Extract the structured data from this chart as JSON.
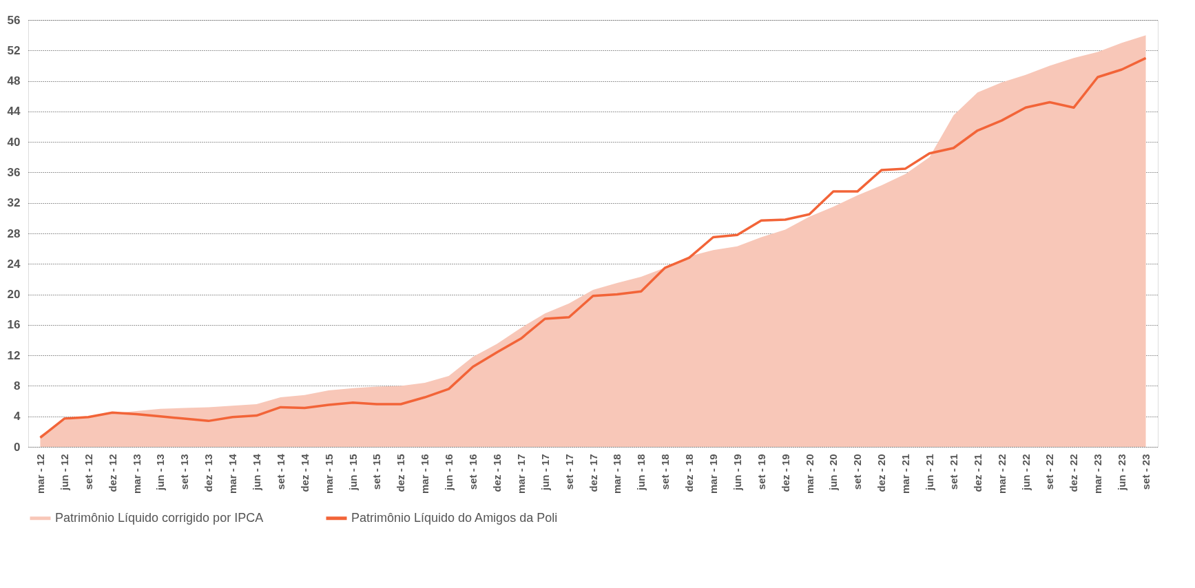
{
  "chart_data": {
    "type": "line",
    "categories": [
      "mar - 12",
      "jun - 12",
      "set - 12",
      "dez - 12",
      "mar - 13",
      "jun - 13",
      "set - 13",
      "dez - 13",
      "mar - 14",
      "jun - 14",
      "set - 14",
      "dez - 14",
      "mar - 15",
      "jun - 15",
      "set - 15",
      "dez - 15",
      "mar - 16",
      "jun - 16",
      "set - 16",
      "dez - 16",
      "mar - 17",
      "jun - 17",
      "set - 17",
      "dez - 17",
      "mar - 18",
      "jun - 18",
      "set - 18",
      "dez - 18",
      "mar - 19",
      "jun - 19",
      "set - 19",
      "dez - 19",
      "mar - 20",
      "jun - 20",
      "set - 20",
      "dez - 20",
      "mar - 21",
      "jun - 21",
      "set - 21",
      "dez - 21",
      "mar - 22",
      "jun - 22",
      "set - 22",
      "dez - 22",
      "mar - 23",
      "jun - 23",
      "set - 23"
    ],
    "series": [
      {
        "name": "Patrimônio Líquido corrigido por IPCA",
        "type": "area",
        "color": "#f8c7b8",
        "values": [
          1.5,
          3.5,
          4.0,
          4.4,
          4.7,
          5.0,
          5.1,
          5.2,
          5.4,
          5.6,
          6.5,
          6.8,
          7.4,
          7.7,
          7.9,
          8.0,
          8.4,
          9.3,
          11.8,
          13.5,
          15.6,
          17.5,
          18.8,
          20.6,
          21.5,
          22.3,
          23.5,
          25.0,
          25.8,
          26.3,
          27.5,
          28.5,
          30.2,
          31.5,
          33.0,
          34.3,
          35.8,
          38.0,
          43.5,
          46.5,
          47.8,
          48.8,
          50.0,
          51.0,
          51.8,
          53.0,
          54.0
        ]
      },
      {
        "name": "Patrimônio Líquido do Amigos da Poli",
        "color": "#f26438",
        "values": [
          1.2,
          3.7,
          3.9,
          4.5,
          4.3,
          4.0,
          3.7,
          3.4,
          3.9,
          4.1,
          5.2,
          5.1,
          5.5,
          5.8,
          5.6,
          5.6,
          6.5,
          7.6,
          10.5,
          12.4,
          14.2,
          16.8,
          17.0,
          19.8,
          20.0,
          20.4,
          23.5,
          24.8,
          27.5,
          27.8,
          29.7,
          29.8,
          30.5,
          33.5,
          33.5,
          36.3,
          36.5,
          38.5,
          39.2,
          41.5,
          42.8,
          44.5,
          45.2,
          44.5,
          48.5,
          49.5,
          51.0
        ]
      }
    ],
    "ylim": [
      0,
      56
    ],
    "yticks": [
      0,
      4,
      8,
      12,
      16,
      20,
      24,
      28,
      32,
      36,
      40,
      44,
      48,
      52,
      56
    ],
    "grid": "y",
    "legend": "bottom"
  }
}
